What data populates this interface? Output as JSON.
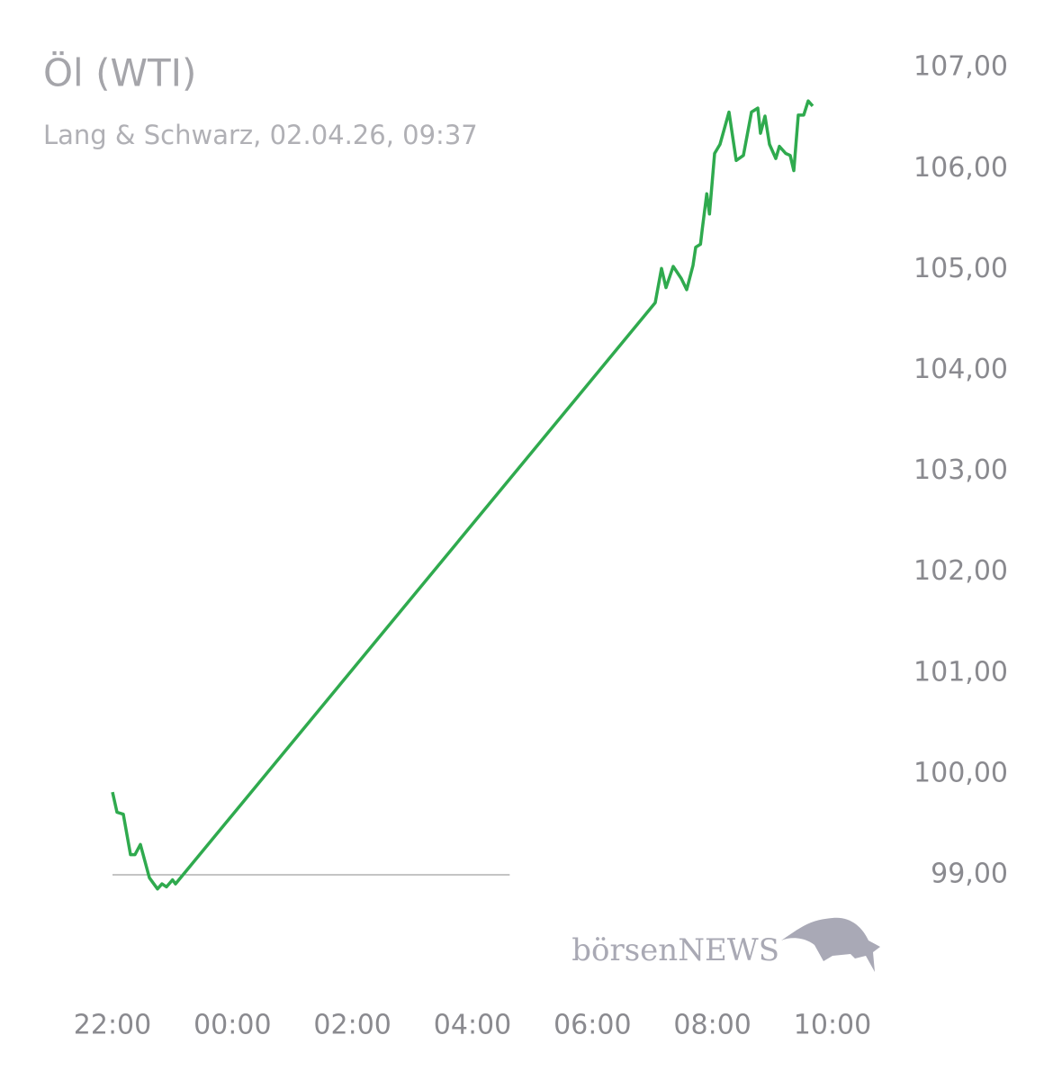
{
  "chart_data": {
    "type": "line",
    "title": "Öl (WTI)",
    "subtitle": "Lang & Schwarz, 02.04.26, 09:37",
    "watermark": "börsenNEWS",
    "x": [
      22.0,
      22.075,
      22.18,
      22.3,
      22.375,
      22.465,
      22.615,
      22.75,
      22.825,
      22.9,
      23.0,
      23.05,
      31.045,
      31.15,
      31.225,
      31.345,
      31.48,
      31.57,
      31.675,
      31.72,
      31.8,
      31.83,
      31.905,
      31.95,
      32.035,
      32.125,
      32.275,
      32.395,
      32.515,
      32.65,
      32.755,
      32.8,
      32.875,
      32.95,
      33.055,
      33.115,
      33.22,
      33.295,
      33.355,
      33.43,
      33.52,
      33.595,
      33.67
    ],
    "series": [
      {
        "name": "Öl (WTI)",
        "color": "#2faa4e",
        "values": [
          99.82,
          99.62,
          99.6,
          99.2,
          99.2,
          99.3,
          98.97,
          98.86,
          98.91,
          98.88,
          98.95,
          98.91,
          104.67,
          105.01,
          104.82,
          105.03,
          104.91,
          104.8,
          105.04,
          105.22,
          105.25,
          105.4,
          105.75,
          105.55,
          106.15,
          106.24,
          106.56,
          106.08,
          106.13,
          106.56,
          106.6,
          106.35,
          106.52,
          106.24,
          106.1,
          106.22,
          106.15,
          106.13,
          105.98,
          106.53,
          106.53,
          106.67,
          106.62
        ]
      }
    ],
    "baseline": {
      "y": 99,
      "x": [
        22,
        28.62
      ],
      "color": "#888888"
    },
    "xlim": [
      22,
      34
    ],
    "xticks": [
      {
        "value": 22,
        "label": "22:00"
      },
      {
        "value": 24,
        "label": "00:00"
      },
      {
        "value": 26,
        "label": "02:00"
      },
      {
        "value": 28,
        "label": "04:00"
      },
      {
        "value": 30,
        "label": "06:00"
      },
      {
        "value": 32,
        "label": "08:00"
      },
      {
        "value": 34,
        "label": "10:00"
      }
    ],
    "ylim": [
      98.75,
      107.15
    ],
    "yticks": [
      {
        "value": 99,
        "label": "99,00"
      },
      {
        "value": 100,
        "label": "100,00"
      },
      {
        "value": 101,
        "label": "101,00"
      },
      {
        "value": 102,
        "label": "102,00"
      },
      {
        "value": 103,
        "label": "103,00"
      },
      {
        "value": 104,
        "label": "104,00"
      },
      {
        "value": 105,
        "label": "105,00"
      },
      {
        "value": 106,
        "label": "106,00"
      },
      {
        "value": 107,
        "label": "107,00"
      }
    ],
    "grid": false
  }
}
